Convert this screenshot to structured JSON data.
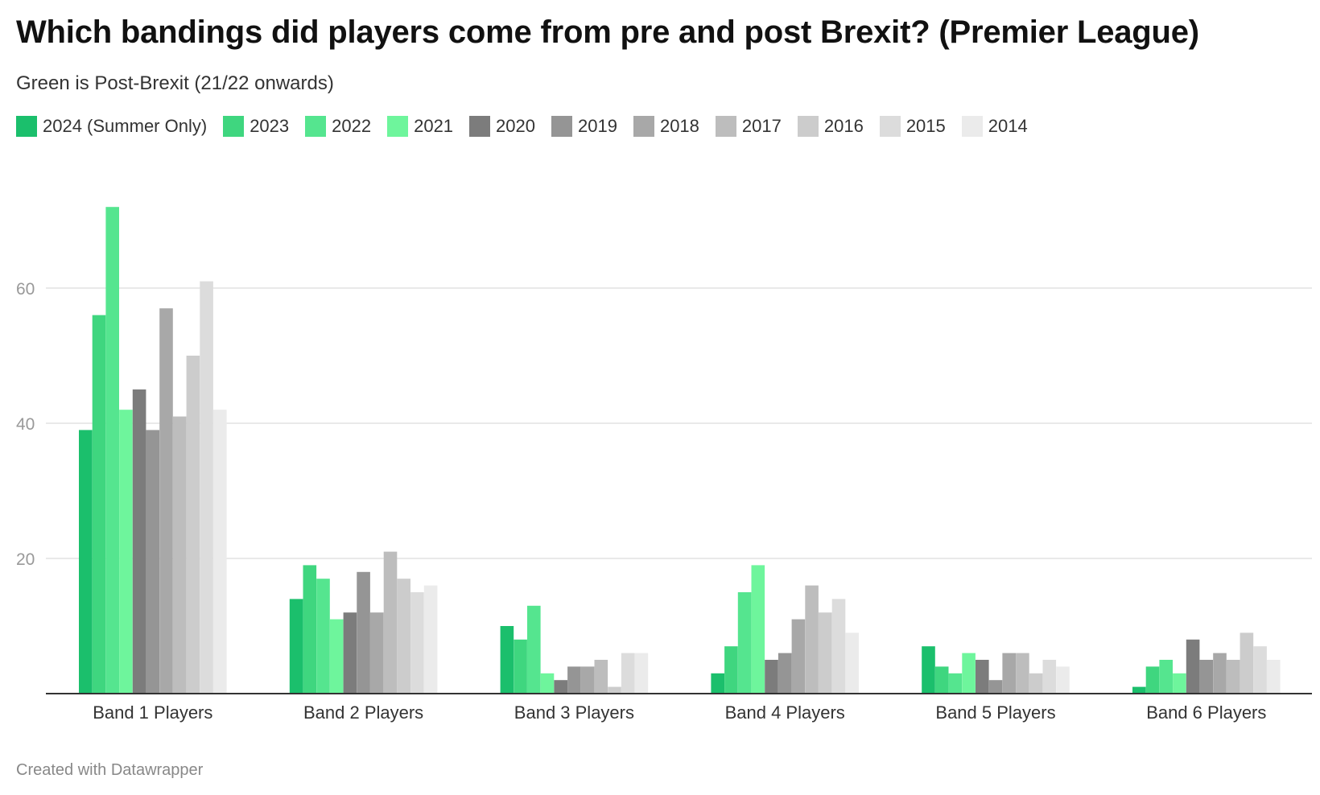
{
  "header": {
    "title": "Which bandings did players come from pre and post Brexit? (Premier League)",
    "subtitle": "Green is Post-Brexit (21/22 onwards)"
  },
  "footer": {
    "credit": "Created with Datawrapper"
  },
  "chart_data": {
    "type": "bar",
    "title": "Which bandings did players come from pre and post Brexit? (Premier League)",
    "subtitle": "Green is Post-Brexit (21/22 onwards)",
    "categories": [
      "Band 1 Players",
      "Band 2 Players",
      "Band 3 Players",
      "Band 4 Players",
      "Band 5 Players",
      "Band 6 Players"
    ],
    "yticks": [
      20,
      40,
      60
    ],
    "ylim": [
      0,
      80
    ],
    "grid": true,
    "legend_position": "top-left",
    "series": [
      {
        "name": "2024 (Summer Only)",
        "color": "#1bbf6c",
        "values": [
          39,
          14,
          10,
          3,
          7,
          1
        ]
      },
      {
        "name": "2023",
        "color": "#3fd67f",
        "values": [
          56,
          19,
          8,
          7,
          4,
          4
        ]
      },
      {
        "name": "2022",
        "color": "#55e58f",
        "values": [
          72,
          17,
          13,
          15,
          3,
          5
        ]
      },
      {
        "name": "2021",
        "color": "#6ef59c",
        "values": [
          42,
          11,
          3,
          19,
          6,
          3
        ]
      },
      {
        "name": "2020",
        "color": "#7c7c7c",
        "values": [
          45,
          12,
          2,
          5,
          5,
          8
        ]
      },
      {
        "name": "2019",
        "color": "#959595",
        "values": [
          39,
          18,
          4,
          6,
          2,
          5
        ]
      },
      {
        "name": "2018",
        "color": "#a8a8a8",
        "values": [
          57,
          12,
          4,
          11,
          6,
          6
        ]
      },
      {
        "name": "2017",
        "color": "#bdbdbd",
        "values": [
          41,
          21,
          5,
          16,
          6,
          5
        ]
      },
      {
        "name": "2016",
        "color": "#cccccc",
        "values": [
          50,
          17,
          1,
          12,
          3,
          9
        ]
      },
      {
        "name": "2015",
        "color": "#dcdcdc",
        "values": [
          61,
          15,
          6,
          14,
          5,
          7
        ]
      },
      {
        "name": "2014",
        "color": "#ebebeb",
        "values": [
          42,
          16,
          6,
          9,
          4,
          5
        ]
      }
    ]
  }
}
